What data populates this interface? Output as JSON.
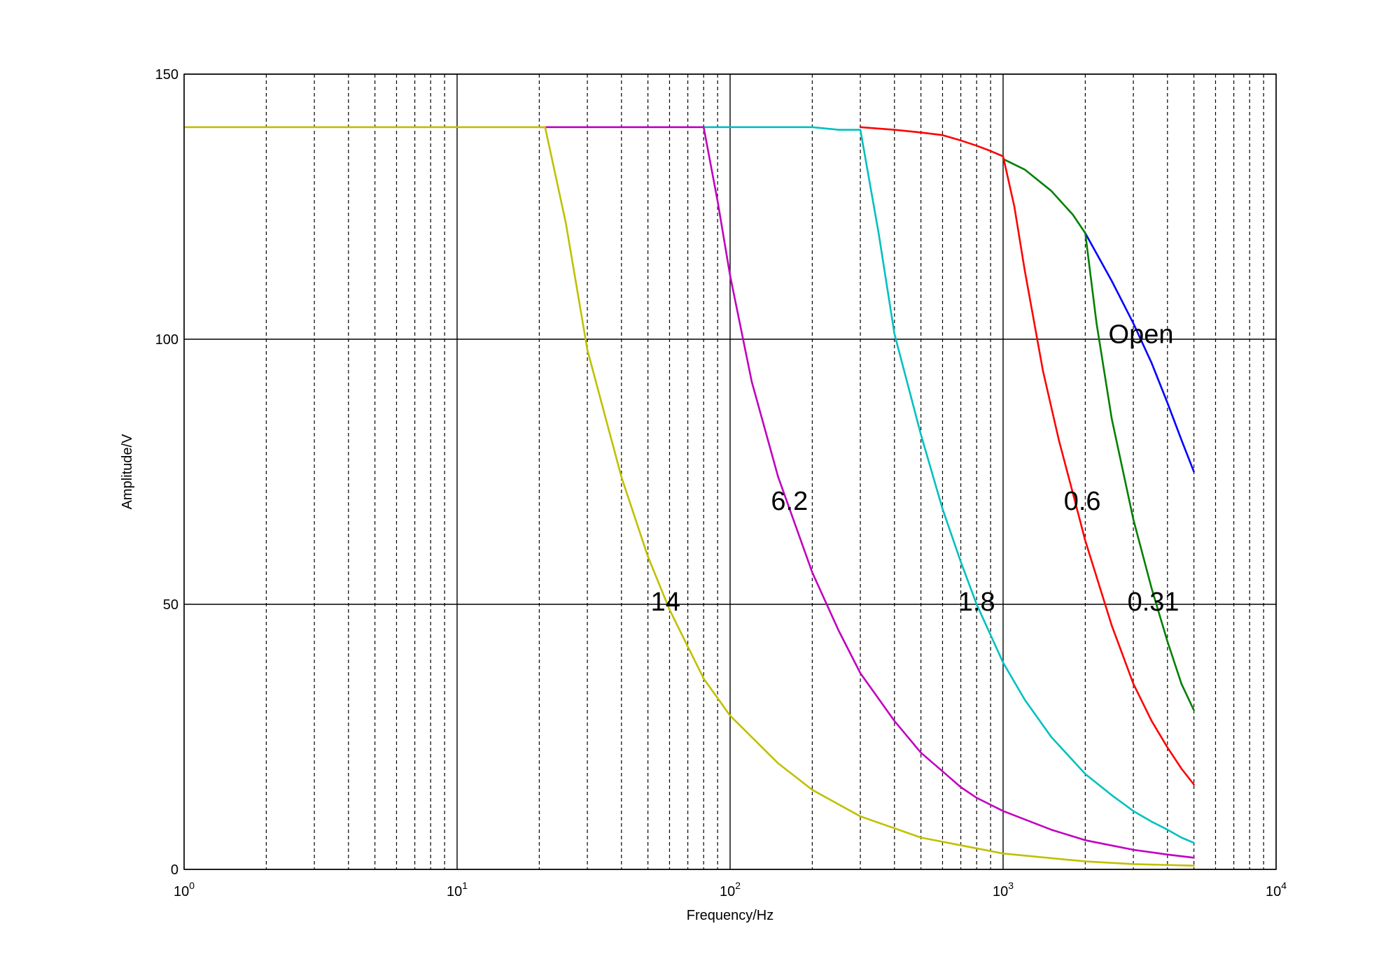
{
  "chart_data": {
    "type": "line",
    "title": "",
    "xlabel": "Frequency/Hz",
    "ylabel": "Amplitude/V",
    "xscale": "log",
    "xlim": [
      1,
      10000
    ],
    "ylim": [
      0,
      150
    ],
    "grid": {
      "major": "solid",
      "minor_x": "dashed"
    },
    "x_tick_labels": [
      "10^0",
      "10^1",
      "10^2",
      "10^3",
      "10^4"
    ],
    "y_tick_labels": [
      "0",
      "50",
      "100",
      "150"
    ],
    "colors": {
      "open": "#0000ff",
      "c031": "#008000",
      "c06": "#ff0000",
      "c18": "#00c0c0",
      "c62": "#c000c0",
      "c14": "#c0c000"
    },
    "series": [
      {
        "name": "Open",
        "color": "#0000ff",
        "x": [
          2000,
          2500,
          3000,
          3500,
          4000,
          4500,
          5000
        ],
        "y": [
          120,
          111,
          103,
          95.5,
          88,
          81,
          75
        ]
      },
      {
        "name": "0.31",
        "color": "#008000",
        "x": [
          1000,
          1200,
          1500,
          1800,
          2000,
          2200,
          2500,
          3000,
          3500,
          4000,
          4500,
          5000
        ],
        "y": [
          134,
          132,
          128,
          123.5,
          120,
          103,
          85,
          66,
          53,
          43,
          35,
          30
        ]
      },
      {
        "name": "0.6",
        "color": "#ff0000",
        "x": [
          300,
          400,
          500,
          600,
          700,
          800,
          900,
          1000,
          1100,
          1200,
          1400,
          1600,
          1800,
          2000,
          2500,
          3000,
          3500,
          4000,
          4500,
          5000
        ],
        "y": [
          140,
          139.5,
          139,
          138.5,
          137.5,
          136.5,
          135.5,
          134.5,
          125,
          113,
          94,
          81,
          71,
          62,
          46,
          35,
          28,
          23,
          19,
          16
        ]
      },
      {
        "name": "1.8",
        "color": "#00c0c0",
        "x": [
          80,
          100,
          150,
          200,
          250,
          300,
          350,
          400,
          500,
          600,
          700,
          800,
          1000,
          1200,
          1500,
          2000,
          2500,
          3000,
          3500,
          4000,
          4500,
          5000
        ],
        "y": [
          140,
          140,
          140,
          140,
          139.5,
          139.5,
          120,
          101,
          82,
          68,
          58,
          50,
          39,
          32,
          25,
          18,
          14,
          11,
          9,
          7.5,
          6,
          5
        ]
      },
      {
        "name": "6.2",
        "color": "#c000c0",
        "x": [
          20,
          40,
          60,
          80,
          90,
          100,
          120,
          150,
          200,
          250,
          300,
          400,
          500,
          600,
          700,
          800,
          1000,
          1500,
          2000,
          3000,
          4000,
          5000
        ],
        "y": [
          140,
          140,
          140,
          140,
          126,
          112,
          92,
          74,
          56,
          45,
          37,
          28,
          22,
          18.5,
          15.5,
          13.5,
          11,
          7.5,
          5.5,
          3.7,
          2.8,
          2.2
        ]
      },
      {
        "name": "14",
        "color": "#c0c000",
        "x": [
          1,
          5,
          10,
          20,
          21,
          25,
          30,
          40,
          50,
          60,
          70,
          80,
          100,
          150,
          200,
          300,
          500,
          1000,
          2000,
          3000,
          5000
        ],
        "y": [
          140,
          140,
          140,
          140,
          140,
          122,
          98,
          74,
          59,
          49,
          42,
          36,
          29,
          20,
          15,
          10,
          6,
          3,
          1.5,
          1,
          0.7
        ]
      }
    ],
    "annotations": [
      {
        "text": "Open",
        "x": 3200,
        "y": 101
      },
      {
        "text": "0.31",
        "x": 3550,
        "y": 50.5
      },
      {
        "text": "0.6",
        "x": 1950,
        "y": 69.5
      },
      {
        "text": "1.8",
        "x": 800,
        "y": 50.5
      },
      {
        "text": "6.2",
        "x": 165,
        "y": 69.5
      },
      {
        "text": "14",
        "x": 58,
        "y": 50.5
      }
    ]
  }
}
